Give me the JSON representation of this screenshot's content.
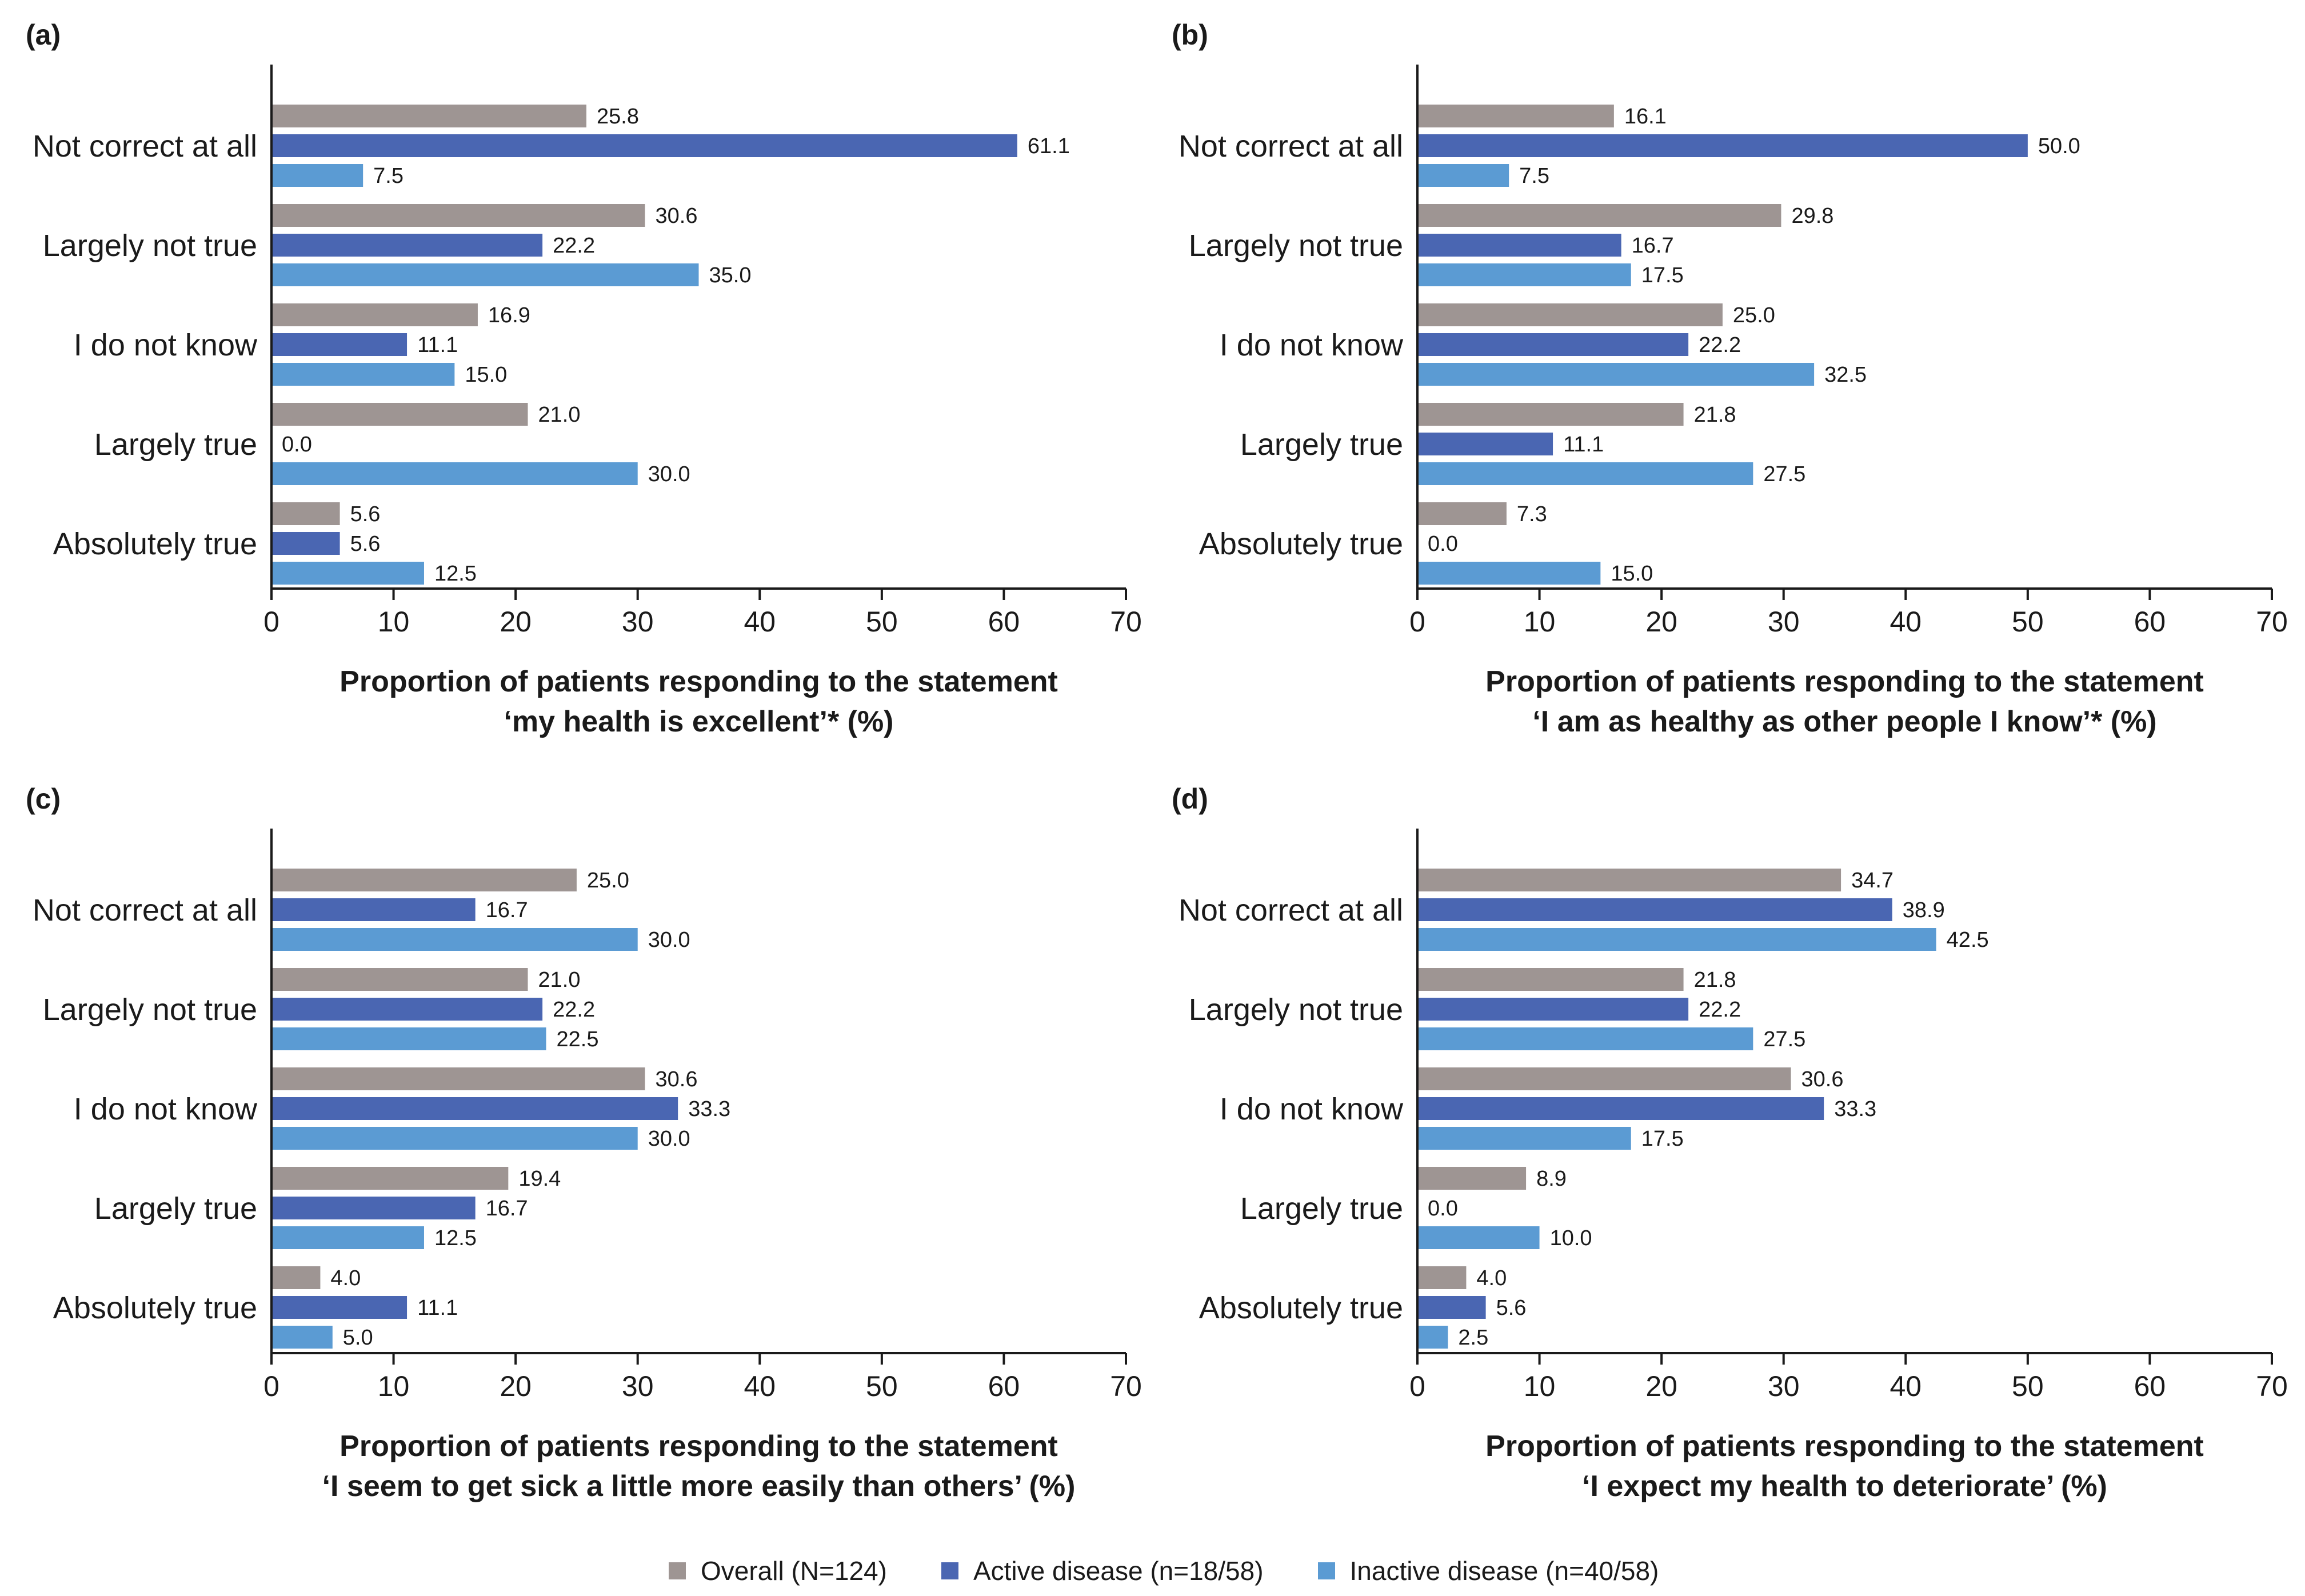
{
  "colors": {
    "overall": "#9e9593",
    "active": "#4a66b2",
    "inactive": "#5b9bd3",
    "axis": "#1a1a1a"
  },
  "legend": [
    {
      "key": "overall",
      "label": "Overall (N=124)"
    },
    {
      "key": "active",
      "label": "Active disease (n=18/58)"
    },
    {
      "key": "inactive",
      "label": "Inactive disease (n=40/58)"
    }
  ],
  "chart_data": [
    {
      "panel": "(a)",
      "type": "bar",
      "orientation": "horizontal",
      "categories": [
        "Not correct at all",
        "Largely not true",
        "I do not know",
        "Largely true",
        "Absolutely true"
      ],
      "series": [
        {
          "name": "Overall (N=124)",
          "key": "overall",
          "values": [
            25.8,
            30.6,
            16.9,
            21.0,
            5.6
          ],
          "labels": [
            "25.8",
            "30.6",
            "16.9",
            "21.0",
            "5.6"
          ]
        },
        {
          "name": "Active disease (n=18/58)",
          "key": "active",
          "values": [
            61.1,
            22.2,
            11.1,
            0.0,
            5.6
          ],
          "labels": [
            "61.1",
            "22.2",
            "11.1",
            "0.0",
            "5.6"
          ]
        },
        {
          "name": "Inactive disease (n=40/58)",
          "key": "inactive",
          "values": [
            7.5,
            35.0,
            15.0,
            30.0,
            12.5
          ],
          "labels": [
            "7.5",
            "35.0",
            "15.0",
            "30.0",
            "12.5"
          ]
        }
      ],
      "xlabel": [
        "Proportion of patients responding to the statement",
        "‘my health is excellent’* (%)"
      ],
      "xlim": [
        0,
        70
      ],
      "xticks": [
        0,
        10,
        20,
        30,
        40,
        50,
        60,
        70
      ]
    },
    {
      "panel": "(b)",
      "type": "bar",
      "orientation": "horizontal",
      "categories": [
        "Not correct at all",
        "Largely not true",
        "I do not know",
        "Largely true",
        "Absolutely true"
      ],
      "series": [
        {
          "name": "Overall (N=124)",
          "key": "overall",
          "values": [
            16.1,
            29.8,
            25.0,
            21.8,
            7.3
          ],
          "labels": [
            "16.1",
            "29.8",
            "25.0",
            "21.8",
            "7.3"
          ]
        },
        {
          "name": "Active disease (n=18/58)",
          "key": "active",
          "values": [
            50.0,
            16.7,
            22.2,
            11.1,
            0.0
          ],
          "labels": [
            "50.0",
            "16.7",
            "22.2",
            "11.1",
            "0.0"
          ]
        },
        {
          "name": "Inactive disease (n=40/58)",
          "key": "inactive",
          "values": [
            7.5,
            17.5,
            32.5,
            27.5,
            15.0
          ],
          "labels": [
            "7.5",
            "17.5",
            "32.5",
            "27.5",
            "15.0"
          ]
        }
      ],
      "xlabel": [
        "Proportion of patients responding to the statement",
        "‘I am as healthy as other people I know’* (%)"
      ],
      "xlim": [
        0,
        70
      ],
      "xticks": [
        0,
        10,
        20,
        30,
        40,
        50,
        60,
        70
      ]
    },
    {
      "panel": "(c)",
      "type": "bar",
      "orientation": "horizontal",
      "categories": [
        "Not correct at all",
        "Largely not true",
        "I do not know",
        "Largely true",
        "Absolutely true"
      ],
      "series": [
        {
          "name": "Overall (N=124)",
          "key": "overall",
          "values": [
            25.0,
            21.0,
            30.6,
            19.4,
            4.0
          ],
          "labels": [
            "25.0",
            "21.0",
            "30.6",
            "19.4",
            "4.0"
          ]
        },
        {
          "name": "Active disease (n=18/58)",
          "key": "active",
          "values": [
            16.7,
            22.2,
            33.3,
            16.7,
            11.1
          ],
          "labels": [
            "16.7",
            "22.2",
            "33.3",
            "16.7",
            "11.1"
          ]
        },
        {
          "name": "Inactive disease (n=40/58)",
          "key": "inactive",
          "values": [
            30.0,
            22.5,
            30.0,
            12.5,
            5.0
          ],
          "labels": [
            "30.0",
            "22.5",
            "30.0",
            "12.5",
            "5.0"
          ]
        }
      ],
      "xlabel": [
        "Proportion of patients responding to the statement",
        "‘I seem to get sick a little more easily than others’ (%)"
      ],
      "xlim": [
        0,
        70
      ],
      "xticks": [
        0,
        10,
        20,
        30,
        40,
        50,
        60,
        70
      ]
    },
    {
      "panel": "(d)",
      "type": "bar",
      "orientation": "horizontal",
      "categories": [
        "Not correct at all",
        "Largely not true",
        "I do not know",
        "Largely true",
        "Absolutely true"
      ],
      "series": [
        {
          "name": "Overall (N=124)",
          "key": "overall",
          "values": [
            34.7,
            21.8,
            30.6,
            8.9,
            4.0
          ],
          "labels": [
            "34.7",
            "21.8",
            "30.6",
            "8.9",
            "4.0"
          ]
        },
        {
          "name": "Active disease (n=18/58)",
          "key": "active",
          "values": [
            38.9,
            22.2,
            33.3,
            0.0,
            5.6
          ],
          "labels": [
            "38.9",
            "22.2",
            "33.3",
            "0.0",
            "5.6"
          ]
        },
        {
          "name": "Inactive disease (n=40/58)",
          "key": "inactive",
          "values": [
            42.5,
            27.5,
            17.5,
            10.0,
            2.5
          ],
          "labels": [
            "42.5",
            "27.5",
            "17.5",
            "10.0",
            "2.5"
          ]
        }
      ],
      "xlabel": [
        "Proportion of patients responding to the statement",
        "‘I expect my health to deteriorate’ (%)"
      ],
      "xlim": [
        0,
        70
      ],
      "xticks": [
        0,
        10,
        20,
        30,
        40,
        50,
        60,
        70
      ]
    }
  ]
}
